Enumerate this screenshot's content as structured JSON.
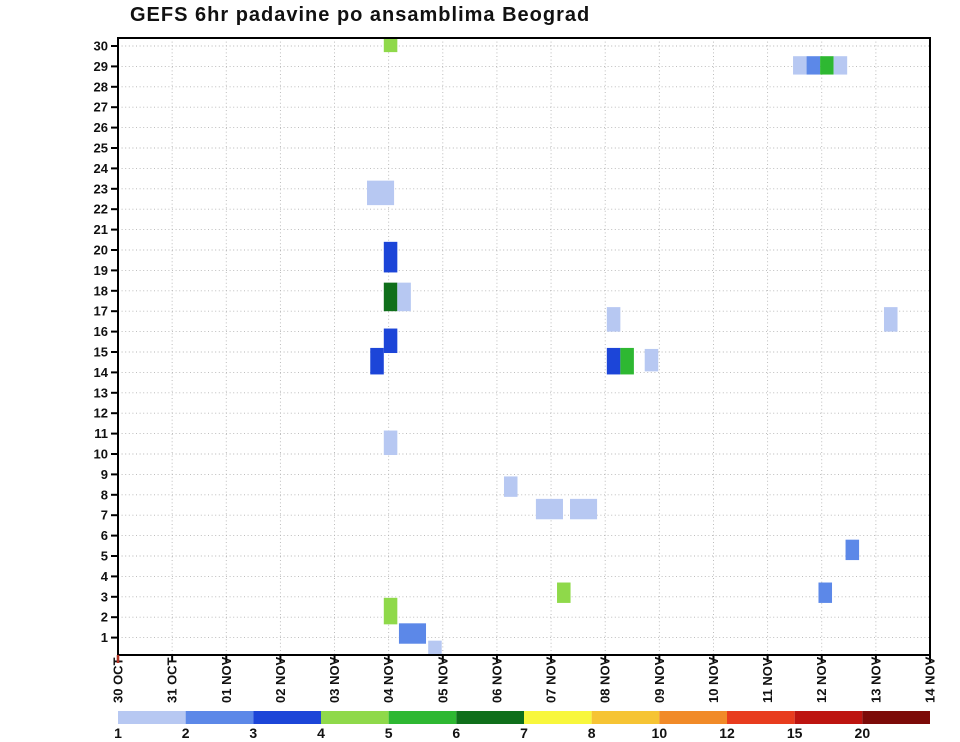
{
  "chart_data": {
    "type": "heatmap",
    "title": "GEFS 6hr padavine po ansamblima Beograd",
    "xlabel": "",
    "ylabel": "",
    "x_ticks": [
      "30 OCT",
      "31 OCT",
      "01 NOV",
      "02 NOV",
      "03 NOV",
      "04 NOV",
      "05 NOV",
      "06 NOV",
      "07 NOV",
      "08 NOV",
      "09 NOV",
      "10 NOV",
      "11 NOV",
      "12 NOV",
      "13 NOV",
      "14 NOV"
    ],
    "y_ticks": [
      1,
      2,
      3,
      4,
      5,
      6,
      7,
      8,
      9,
      10,
      11,
      12,
      13,
      14,
      15,
      16,
      17,
      18,
      19,
      20,
      21,
      22,
      23,
      24,
      25,
      26,
      27,
      28,
      29,
      30
    ],
    "grid": "dotted",
    "slots_per_day": 4,
    "axis": {
      "line_color": "#000000",
      "grid_color": "#b5b5b5",
      "origin_tick_color": "#b03324"
    },
    "colors": {
      "1": "#b7c8f2",
      "2": "#5c88e8",
      "3": "#1c45d8",
      "4": "#8fd94a",
      "5": "#2eb832",
      "6": "#0f6f1b",
      "7": "#f8f73c",
      "8": "#f6c434",
      "10": "#f18a28",
      "12": "#e83c1e",
      "15": "#bd1410",
      "20": "#7c0a08"
    },
    "colorbar": {
      "values": [
        1,
        2,
        3,
        4,
        5,
        6,
        7,
        8,
        10,
        12,
        15,
        20
      ]
    },
    "cells": [
      {
        "d": 4.91,
        "w": 0.25,
        "r": 30.1,
        "h": 0.8,
        "v": 4
      },
      {
        "d": 12.47,
        "w": 0.25,
        "r": 29.05,
        "h": 0.9,
        "v": 1
      },
      {
        "d": 12.72,
        "w": 0.25,
        "r": 29.05,
        "h": 0.9,
        "v": 2
      },
      {
        "d": 12.97,
        "w": 0.25,
        "r": 29.05,
        "h": 0.9,
        "v": 5
      },
      {
        "d": 13.22,
        "w": 0.25,
        "r": 29.05,
        "h": 0.9,
        "v": 1
      },
      {
        "d": 4.6,
        "w": 0.5,
        "r": 22.8,
        "h": 1.2,
        "v": 1
      },
      {
        "d": 4.91,
        "w": 0.25,
        "r": 19.65,
        "h": 1.5,
        "v": 3
      },
      {
        "d": 4.91,
        "w": 0.25,
        "r": 17.7,
        "h": 1.4,
        "v": 6
      },
      {
        "d": 5.16,
        "w": 0.25,
        "r": 17.7,
        "h": 1.4,
        "v": 1
      },
      {
        "d": 4.91,
        "w": 0.25,
        "r": 15.55,
        "h": 1.2,
        "v": 3
      },
      {
        "d": 4.66,
        "w": 0.25,
        "r": 14.55,
        "h": 1.3,
        "v": 3
      },
      {
        "d": 9.03,
        "w": 0.25,
        "r": 16.6,
        "h": 1.2,
        "v": 1
      },
      {
        "d": 9.03,
        "w": 0.25,
        "r": 14.55,
        "h": 1.3,
        "v": 3
      },
      {
        "d": 9.28,
        "w": 0.25,
        "r": 14.55,
        "h": 1.3,
        "v": 5
      },
      {
        "d": 9.73,
        "w": 0.25,
        "r": 14.6,
        "h": 1.1,
        "v": 1
      },
      {
        "d": 14.15,
        "w": 0.25,
        "r": 16.6,
        "h": 1.2,
        "v": 1
      },
      {
        "d": 4.91,
        "w": 0.25,
        "r": 10.55,
        "h": 1.2,
        "v": 1
      },
      {
        "d": 7.13,
        "w": 0.25,
        "r": 8.4,
        "h": 1.0,
        "v": 1
      },
      {
        "d": 7.72,
        "w": 0.5,
        "r": 7.3,
        "h": 1.0,
        "v": 1
      },
      {
        "d": 8.35,
        "w": 0.5,
        "r": 7.3,
        "h": 1.0,
        "v": 1
      },
      {
        "d": 8.11,
        "w": 0.25,
        "r": 3.2,
        "h": 1.0,
        "v": 4
      },
      {
        "d": 12.94,
        "w": 0.25,
        "r": 3.2,
        "h": 1.0,
        "v": 2
      },
      {
        "d": 13.44,
        "w": 0.25,
        "r": 5.3,
        "h": 1.0,
        "v": 2
      },
      {
        "d": 4.91,
        "w": 0.25,
        "r": 2.3,
        "h": 1.3,
        "v": 4
      },
      {
        "d": 5.19,
        "w": 0.5,
        "r": 1.2,
        "h": 1.0,
        "v": 2
      },
      {
        "d": 5.73,
        "w": 0.25,
        "r": 0.45,
        "h": 0.8,
        "v": 1
      }
    ]
  }
}
